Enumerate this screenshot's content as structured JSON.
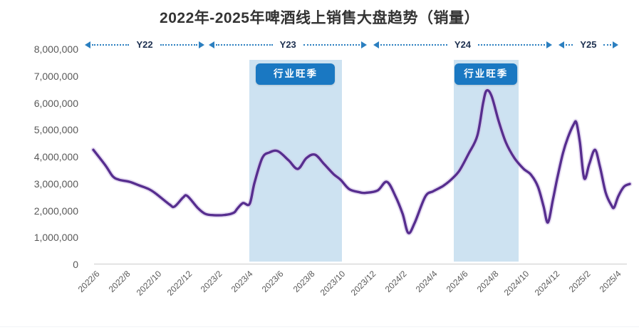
{
  "colors": {
    "line": "#572e8f",
    "line_halo": "#cdbbe6",
    "band_fill": "#cde2f1",
    "badge_bg": "#1a78c2",
    "badge_text": "#ffffff",
    "arrow": "#2b7fc0",
    "year_label": "#1d3050",
    "axis_text": "#595959",
    "title_text": "#333333",
    "axis_line": "#d9d9d9"
  },
  "chart_data": {
    "type": "line",
    "title": "2022年-2025年啤酒线上销售大盘趋势（销量）",
    "xlabel": "",
    "ylabel": "",
    "ylim": [
      0,
      8000000
    ],
    "grid": false,
    "legend_position": "none",
    "y_ticks": [
      {
        "label": "8,000,000",
        "value": 8
      },
      {
        "label": "7,000,000",
        "value": 7
      },
      {
        "label": "6,000,000",
        "value": 6
      },
      {
        "label": "5,000,000",
        "value": 5
      },
      {
        "label": "4,000,000",
        "value": 4
      },
      {
        "label": "3,000,000",
        "value": 3
      },
      {
        "label": "2,000,000",
        "value": 2
      },
      {
        "label": "1,000,000",
        "value": 1
      },
      {
        "label": "0",
        "value": 0
      }
    ],
    "x_tick_labels": [
      "2022/6",
      "2022/8",
      "2022/10",
      "2022/12",
      "2023/2",
      "2023/4",
      "2023/6",
      "2023/8",
      "2023/10",
      "2023/12",
      "2024/2",
      "2024/4",
      "2024/6",
      "2024/8",
      "2024/10",
      "2024/12",
      "2025/2",
      "2025/4"
    ],
    "x_axis_note": "x ticks every 2 months starting 2022/6; curve is sampled at sub-monthly resolution (month_offset 0 = 2022/6)",
    "series": [
      {
        "name": "销量",
        "unit": "millions",
        "points_month_offset_vs_millions": [
          [
            0,
            4.26
          ],
          [
            0.79,
            3.68
          ],
          [
            1.26,
            3.28
          ],
          [
            1.67,
            3.15
          ],
          [
            2.37,
            3.07
          ],
          [
            2.98,
            2.94
          ],
          [
            3.58,
            2.81
          ],
          [
            4.04,
            2.65
          ],
          [
            4.97,
            2.23
          ],
          [
            5.3,
            2.15
          ],
          [
            5.86,
            2.49
          ],
          [
            6.14,
            2.54
          ],
          [
            6.83,
            2.09
          ],
          [
            7.3,
            1.88
          ],
          [
            7.86,
            1.83
          ],
          [
            8.6,
            1.84
          ],
          [
            9.16,
            1.92
          ],
          [
            9.39,
            2.07
          ],
          [
            9.76,
            2.28
          ],
          [
            10.2,
            2.25
          ],
          [
            10.51,
            3.02
          ],
          [
            11.02,
            3.95
          ],
          [
            11.48,
            4.16
          ],
          [
            12.04,
            4.21
          ],
          [
            12.74,
            3.87
          ],
          [
            13.34,
            3.55
          ],
          [
            13.9,
            3.95
          ],
          [
            14.46,
            4.08
          ],
          [
            15.06,
            3.73
          ],
          [
            15.67,
            3.36
          ],
          [
            16.13,
            3.15
          ],
          [
            16.69,
            2.8
          ],
          [
            17.39,
            2.68
          ],
          [
            17.76,
            2.66
          ],
          [
            18.55,
            2.75
          ],
          [
            19.15,
            3.07
          ],
          [
            19.71,
            2.54
          ],
          [
            20.18,
            1.88
          ],
          [
            20.55,
            1.17
          ],
          [
            20.97,
            1.55
          ],
          [
            21.66,
            2.52
          ],
          [
            22.18,
            2.72
          ],
          [
            22.83,
            2.92
          ],
          [
            23.38,
            3.17
          ],
          [
            23.9,
            3.5
          ],
          [
            24.5,
            4.13
          ],
          [
            25.06,
            4.79
          ],
          [
            25.43,
            5.99
          ],
          [
            25.66,
            6.46
          ],
          [
            25.99,
            6.25
          ],
          [
            26.45,
            5.32
          ],
          [
            26.92,
            4.53
          ],
          [
            27.48,
            3.95
          ],
          [
            28.08,
            3.55
          ],
          [
            28.55,
            3.34
          ],
          [
            29.01,
            2.89
          ],
          [
            29.38,
            2.15
          ],
          [
            29.66,
            1.56
          ],
          [
            29.99,
            2.41
          ],
          [
            30.27,
            3.2
          ],
          [
            30.64,
            4.13
          ],
          [
            30.96,
            4.71
          ],
          [
            31.33,
            5.19
          ],
          [
            31.52,
            5.27
          ],
          [
            31.75,
            4.53
          ],
          [
            32.03,
            3.2
          ],
          [
            32.36,
            3.73
          ],
          [
            32.73,
            4.26
          ],
          [
            33.05,
            3.65
          ],
          [
            33.43,
            2.67
          ],
          [
            33.8,
            2.2
          ],
          [
            33.98,
            2.12
          ],
          [
            34.26,
            2.54
          ],
          [
            34.63,
            2.89
          ],
          [
            35,
            2.99
          ]
        ]
      }
    ],
    "monthly_estimates": {
      "labels": [
        "2022/6",
        "2022/7",
        "2022/8",
        "2022/9",
        "2022/10",
        "2022/11",
        "2022/12",
        "2023/1",
        "2023/2",
        "2023/3",
        "2023/4",
        "2023/5",
        "2023/6",
        "2023/7",
        "2023/8",
        "2023/9",
        "2023/10",
        "2023/11",
        "2023/12",
        "2024/1",
        "2024/2",
        "2024/3",
        "2024/4",
        "2024/5",
        "2024/6",
        "2024/7",
        "2024/8",
        "2024/9",
        "2024/10",
        "2024/11",
        "2024/12",
        "2025/1",
        "2025/2",
        "2025/3",
        "2025/4",
        "2025/5"
      ],
      "values_millions": [
        4.26,
        3.45,
        3.12,
        2.93,
        2.65,
        2.22,
        2.53,
        1.97,
        1.84,
        1.9,
        2.27,
        3.9,
        4.21,
        3.59,
        4.02,
        3.74,
        3.18,
        2.7,
        2.67,
        3.07,
        1.95,
        1.5,
        2.72,
        3.0,
        3.6,
        4.75,
        6.25,
        4.25,
        3.58,
        2.89,
        2.5,
        4.9,
        3.25,
        3.7,
        2.2,
        2.99
      ]
    },
    "annotations": {
      "year_spans": [
        {
          "label": "Y22",
          "from_month": -0.55,
          "to_month": 7.25
        },
        {
          "label": "Y23",
          "from_month": 7.55,
          "to_month": 17.85
        },
        {
          "label": "Y24",
          "from_month": 18.25,
          "to_month": 29.95
        },
        {
          "label": "Y25",
          "from_month": 30.35,
          "to_month": 34.25
        }
      ],
      "peak_season_bands": [
        {
          "label": "行业旺季",
          "from_month": 10.2,
          "to_month": 16.2,
          "covers": "2023/4 - 2023/10"
        },
        {
          "label": "行业旺季",
          "from_month": 23.5,
          "to_month": 27.75,
          "covers": "2024/6 - 2024/9"
        }
      ]
    }
  }
}
